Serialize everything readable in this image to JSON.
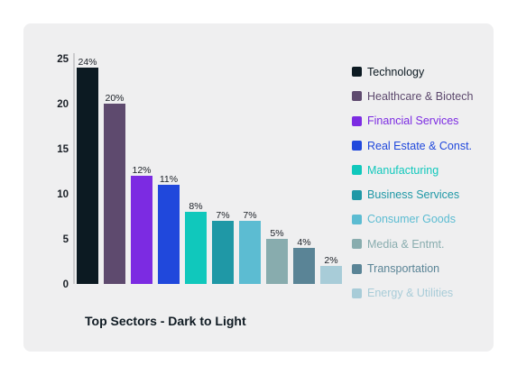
{
  "chart_data": {
    "type": "bar",
    "title": "Top Sectors - Dark to Light",
    "categories": [
      "Technology",
      "Healthcare & Biotech",
      "Financial Services",
      "Real Estate & Const.",
      "Manufacturing",
      "Business Services",
      "Consumer Goods",
      "Media & Entmt.",
      "Transportation",
      "Energy & Utilities"
    ],
    "values": [
      24,
      20,
      12,
      11,
      8,
      7,
      7,
      5,
      4,
      2
    ],
    "data_labels": [
      "24%",
      "20%",
      "12%",
      "11%",
      "8%",
      "7%",
      "7%",
      "5%",
      "4%",
      "2%"
    ],
    "colors": [
      "#0c1a22",
      "#5e4a6e",
      "#7c2be2",
      "#2048dc",
      "#10c8bc",
      "#1f98a6",
      "#5cbcd2",
      "#88acae",
      "#5a8496",
      "#a8ccd8"
    ],
    "label_colors": [
      "#0c1a22",
      "#5e4a6e",
      "#7c2be2",
      "#2048dc",
      "#10c8bc",
      "#1f98a6",
      "#5cbcd2",
      "#88acae",
      "#5a8496",
      "#a8ccd8"
    ],
    "yticks": [
      0,
      5,
      10,
      15,
      20,
      25
    ],
    "ylim": [
      0,
      25
    ],
    "grid": false,
    "legend": "right",
    "xlabel": "",
    "ylabel": ""
  }
}
